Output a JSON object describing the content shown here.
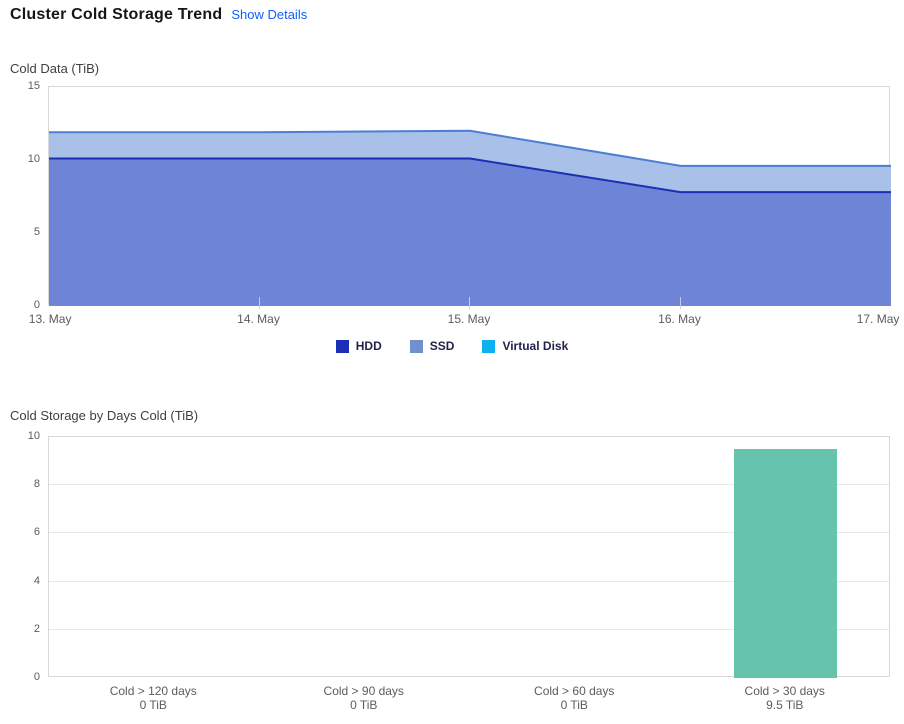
{
  "header": {
    "title": "Cluster Cold Storage Trend",
    "show_details_label": "Show Details"
  },
  "colors": {
    "link": "#0f62fe",
    "axis_text": "#595c61",
    "frame": "#d8d8d8",
    "grid": "#e8e8e8",
    "legend_text": "#20244c",
    "bar": "#66c3ae"
  },
  "chart_data": [
    {
      "type": "area",
      "title": "Cold Data (TiB)",
      "stacked": true,
      "x": [
        "13. May",
        "14. May",
        "15. May",
        "16. May",
        "17. May"
      ],
      "ylim": [
        0,
        15
      ],
      "yticks": [
        0,
        5,
        10,
        15
      ],
      "grid": false,
      "legend_position": "bottom-center",
      "series": [
        {
          "name": "HDD",
          "values": [
            10.1,
            10.1,
            10.1,
            7.8,
            7.8
          ],
          "stroke": "#1b2fb4",
          "fill": "#6e84d6",
          "legend_color": "#1b2eb4"
        },
        {
          "name": "SSD",
          "values": [
            1.8,
            1.8,
            1.9,
            1.8,
            1.8
          ],
          "stroke": "#4a7fd4",
          "fill": "#a9c0e8",
          "legend_color": "#7191cc"
        },
        {
          "name": "Virtual Disk",
          "values": [
            0,
            0,
            0,
            0,
            0
          ],
          "stroke": "#0fb0f0",
          "fill": "#0fb0f0",
          "legend_color": "#0fb0f0"
        }
      ]
    },
    {
      "type": "bar",
      "title": "Cold Storage by Days Cold (TiB)",
      "categories": [
        "Cold > 120 days",
        "Cold > 90 days",
        "Cold > 60 days",
        "Cold > 30 days"
      ],
      "values": [
        0,
        0,
        0,
        9.5
      ],
      "value_labels": [
        "0 TiB",
        "0 TiB",
        "0 TiB",
        "9.5 TiB"
      ],
      "ylim": [
        0,
        10
      ],
      "yticks": [
        0,
        2,
        4,
        6,
        8,
        10
      ],
      "grid": true
    }
  ]
}
